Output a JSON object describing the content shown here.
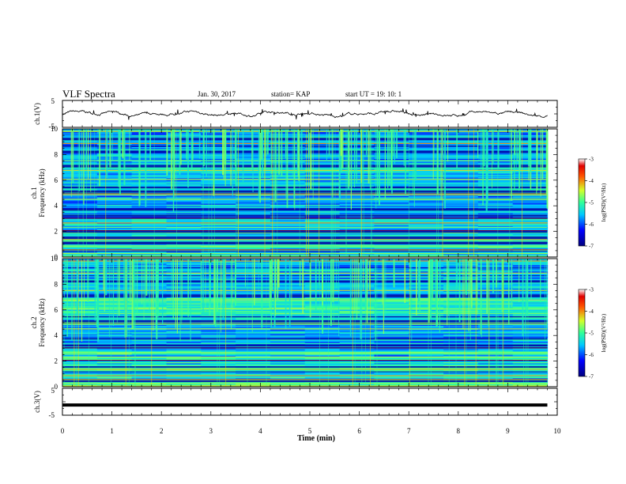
{
  "header": {
    "title": "VLF Spectra",
    "date": "Jan. 30, 2017",
    "station": "station= KAP",
    "start": "start  UT =   19: 10: 1"
  },
  "chart_data": [
    {
      "type": "line",
      "panel": "ch1-waveform",
      "ylabel": "ch.1(V)",
      "ylim": [
        -5,
        5
      ],
      "yticks": [
        -5,
        5
      ],
      "xlim": [
        0,
        9.8
      ],
      "note": "noisy waveform fluctuating roughly between -1 and 1.5 V"
    },
    {
      "type": "heatmap",
      "panel": "ch1-spectrogram",
      "ylabel_top": "ch.1",
      "ylabel": "Frequency (kHz)",
      "ylim": [
        0,
        10
      ],
      "yticks": [
        0,
        2,
        4,
        6,
        8,
        10
      ],
      "xlim": [
        0,
        9.8
      ],
      "colorbar": {
        "label": "log(PSD)(V²/Hz)",
        "range": [
          -7,
          -3
        ],
        "ticks": [
          -3,
          -4,
          -5,
          -6,
          -7
        ]
      }
    },
    {
      "type": "heatmap",
      "panel": "ch2-spectrogram",
      "ylabel_top": "ch.2",
      "ylabel": "Frequency (kHz)",
      "ylim": [
        0,
        10
      ],
      "yticks": [
        0,
        2,
        4,
        6,
        8,
        10
      ],
      "xlim": [
        0,
        9.8
      ],
      "colorbar": {
        "label": "log(PSD)(V²/Hz)",
        "range": [
          -7,
          -3
        ],
        "ticks": [
          -3,
          -4,
          -5,
          -6,
          -7
        ]
      }
    },
    {
      "type": "line",
      "panel": "ch3-waveform",
      "ylabel": "ch.3(V)",
      "ylim": [
        -5,
        5
      ],
      "yticks": [
        -5,
        5
      ],
      "xlim": [
        0,
        9.8
      ],
      "value": -1.2
    }
  ],
  "xaxis": {
    "label": "Time (min)",
    "range": [
      0,
      10
    ],
    "ticks": [
      "0",
      "1",
      "2",
      "3",
      "4",
      "5",
      "6",
      "7",
      "8",
      "9",
      "10"
    ]
  }
}
